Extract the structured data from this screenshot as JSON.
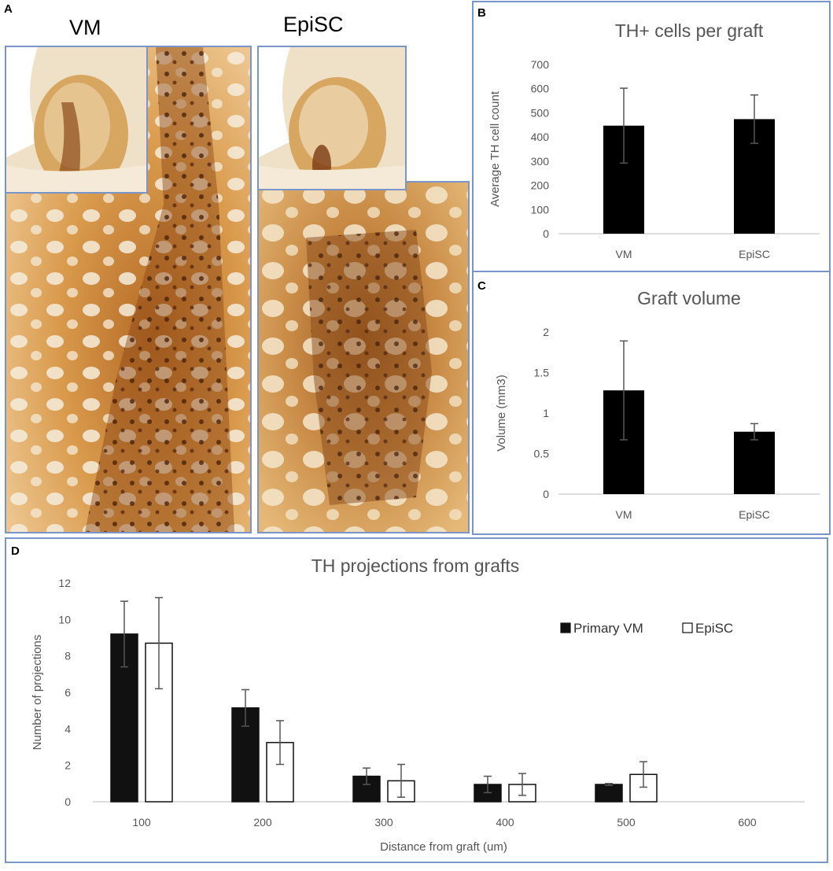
{
  "panel_a": {
    "letter": "A",
    "left_title": "VM",
    "right_title": "EpiSC"
  },
  "panel_b": {
    "letter": "B"
  },
  "panel_c": {
    "letter": "C"
  },
  "panel_d": {
    "letter": "D"
  },
  "chart_data": [
    {
      "id": "b",
      "type": "bar",
      "title": "TH+ cells per graft",
      "ylabel": "Average TH cell count",
      "xlabel": "",
      "categories": [
        "VM",
        "EpiSC"
      ],
      "values": [
        447,
        474
      ],
      "errors": [
        155,
        100
      ],
      "ylim": [
        0,
        700
      ],
      "yticks": [
        0,
        100,
        200,
        300,
        400,
        500,
        600,
        700
      ],
      "colors": {
        "bar": "#000000",
        "error": "#555555"
      }
    },
    {
      "id": "c",
      "type": "bar",
      "title": "Graft volume",
      "ylabel": "Volume (mm3)",
      "xlabel": "",
      "categories": [
        "VM",
        "EpiSC"
      ],
      "values": [
        1.28,
        0.77
      ],
      "errors": [
        0.61,
        0.1
      ],
      "ylim": [
        0,
        2
      ],
      "yticks": [
        "0",
        "0.5",
        "1",
        "1.5",
        "2"
      ],
      "colors": {
        "bar": "#000000",
        "error": "#555555"
      }
    },
    {
      "id": "d",
      "type": "bar",
      "title": "TH projections from grafts",
      "ylabel": "Number of projections",
      "xlabel": "Distance from graft (um)",
      "categories": [
        "100",
        "200",
        "300",
        "400",
        "500",
        "600"
      ],
      "ylim": [
        0,
        12
      ],
      "yticks": [
        0,
        2,
        4,
        6,
        8,
        10,
        12
      ],
      "legend_position": "right",
      "series": [
        {
          "name": "Primary VM",
          "values": [
            9.2,
            5.15,
            1.4,
            0.95,
            0.95,
            null
          ],
          "errors": [
            1.8,
            1.0,
            0.45,
            0.45,
            0.05,
            null
          ],
          "color": "#111111"
        },
        {
          "name": "EpiSC",
          "values": [
            8.7,
            3.25,
            1.15,
            0.95,
            1.5,
            null
          ],
          "errors": [
            2.5,
            1.2,
            0.9,
            0.6,
            0.7,
            null
          ],
          "color": "#ffffff"
        }
      ]
    }
  ]
}
